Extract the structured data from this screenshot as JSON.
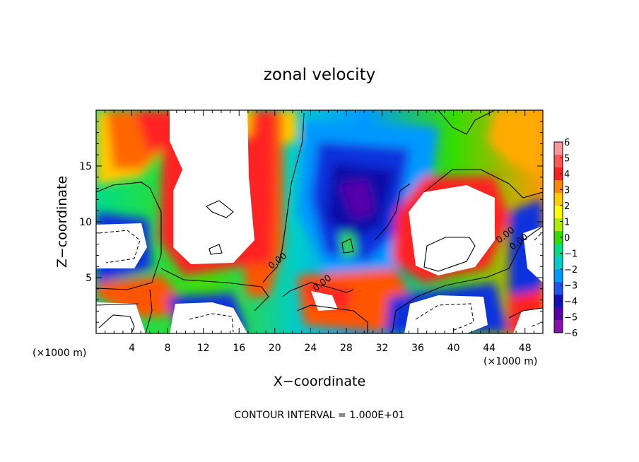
{
  "chart_data": {
    "type": "heatmap",
    "title": "zonal velocity",
    "xlabel": "X−coordinate",
    "ylabel": "Z−coordinate",
    "x_unit_left": "(×1000 m)",
    "x_unit_right": "(×1000 m)",
    "xlim": [
      0,
      50
    ],
    "ylim": [
      0,
      20
    ],
    "x_ticks": [
      4,
      8,
      12,
      16,
      20,
      24,
      28,
      32,
      36,
      40,
      44,
      48
    ],
    "y_ticks": [
      5,
      10,
      15
    ],
    "colorbar": {
      "min": -6,
      "max": 6,
      "labels": [
        6,
        5,
        4,
        3,
        2,
        1,
        0,
        -1,
        -2,
        -3,
        -4,
        -5,
        -6
      ],
      "colors": [
        "#ff9999",
        "#ff5555",
        "#ff2222",
        "#ff8800",
        "#ffcc00",
        "#ffff00",
        "#aaee00",
        "#33dd00",
        "#00dd88",
        "#00cccc",
        "#0099ff",
        "#2255ee",
        "#1111bb",
        "#5500aa",
        "#8811aa"
      ]
    },
    "contour_labels": [
      {
        "text": "0.00",
        "x": 20.5,
        "z": 6.3
      },
      {
        "text": "0.00",
        "x": 25.5,
        "z": 4.3
      },
      {
        "text": "0.00",
        "x": 46.0,
        "z": 8.6
      },
      {
        "text": "0.00",
        "x": 47.5,
        "z": 8.0
      }
    ],
    "footer": "CONTOUR INTERVAL = 1.000E+01"
  }
}
